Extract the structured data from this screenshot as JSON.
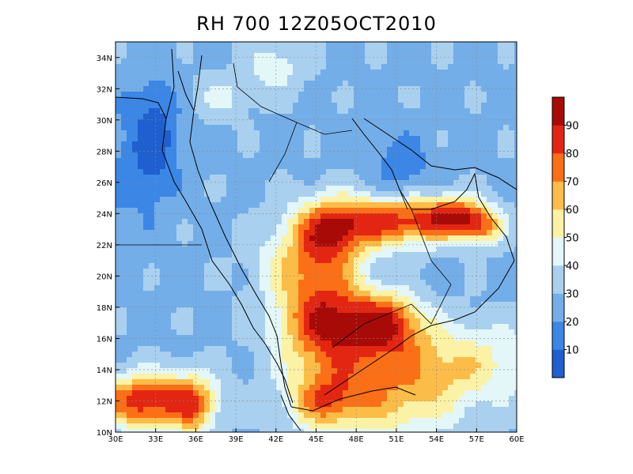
{
  "title": "RH 700 12Z05OCT2010",
  "map": {
    "lon_range": [
      30,
      60
    ],
    "lat_range": [
      10,
      35
    ],
    "x_ticks": [
      {
        "value": 30,
        "label": "30E"
      },
      {
        "value": 33,
        "label": "33E"
      },
      {
        "value": 36,
        "label": "36E"
      },
      {
        "value": 39,
        "label": "39E"
      },
      {
        "value": 42,
        "label": "42E"
      },
      {
        "value": 45,
        "label": "45E"
      },
      {
        "value": 48,
        "label": "48E"
      },
      {
        "value": 51,
        "label": "51E"
      },
      {
        "value": 54,
        "label": "54E"
      },
      {
        "value": 57,
        "label": "57E"
      },
      {
        "value": 60,
        "label": "60E"
      }
    ],
    "y_ticks": [
      {
        "value": 10,
        "label": "10N"
      },
      {
        "value": 12,
        "label": "12N"
      },
      {
        "value": 14,
        "label": "14N"
      },
      {
        "value": 16,
        "label": "16N"
      },
      {
        "value": 18,
        "label": "18N"
      },
      {
        "value": 20,
        "label": "20N"
      },
      {
        "value": 22,
        "label": "22N"
      },
      {
        "value": 24,
        "label": "24N"
      },
      {
        "value": 26,
        "label": "26N"
      },
      {
        "value": 28,
        "label": "28N"
      },
      {
        "value": 30,
        "label": "30N"
      },
      {
        "value": 32,
        "label": "32N"
      },
      {
        "value": 34,
        "label": "34N"
      }
    ],
    "grid": true
  },
  "colorbar": {
    "labels": [
      "10",
      "20",
      "30",
      "40",
      "50",
      "60",
      "70",
      "80",
      "90"
    ],
    "colors": [
      "#1f5fcf",
      "#3c86e6",
      "#74aee9",
      "#a9d0ef",
      "#e3f6f8",
      "#fbf2a5",
      "#fcbc48",
      "#fb6f16",
      "#e32612",
      "#a80b07"
    ]
  },
  "fields": {
    "background_rh": 28,
    "features": [
      {
        "lon": 33.0,
        "lat": 29.0,
        "sx": 1.2,
        "sy": 2.5,
        "amp": -22
      },
      {
        "lon": 31.0,
        "lat": 27.0,
        "sx": 2.0,
        "sy": 3.0,
        "amp": -10
      },
      {
        "lon": 51.5,
        "lat": 27.0,
        "sx": 1.5,
        "sy": 1.5,
        "amp": -15
      },
      {
        "lon": 38.0,
        "lat": 31.5,
        "sx": 1.6,
        "sy": 1.0,
        "amp": 14
      },
      {
        "lon": 42.0,
        "lat": 33.5,
        "sx": 1.5,
        "sy": 1.2,
        "amp": 18
      },
      {
        "lon": 46.0,
        "lat": 17.0,
        "sx": 2.6,
        "sy": 2.2,
        "amp": 62
      },
      {
        "lon": 50.5,
        "lat": 17.0,
        "sx": 1.8,
        "sy": 1.4,
        "amp": 45
      },
      {
        "lon": 44.5,
        "lat": 21.0,
        "sx": 2.5,
        "sy": 1.8,
        "amp": 30
      },
      {
        "lon": 46.0,
        "lat": 23.0,
        "sx": 1.8,
        "sy": 1.5,
        "amp": 38
      },
      {
        "lon": 51.0,
        "lat": 23.5,
        "sx": 3.5,
        "sy": 1.1,
        "amp": 55
      },
      {
        "lon": 55.5,
        "lat": 23.8,
        "sx": 1.6,
        "sy": 0.8,
        "amp": 45
      },
      {
        "lon": 57.5,
        "lat": 23.0,
        "sx": 1.0,
        "sy": 0.8,
        "amp": 30
      },
      {
        "lon": 32.5,
        "lat": 12.0,
        "sx": 2.8,
        "sy": 1.2,
        "amp": 62
      },
      {
        "lon": 36.0,
        "lat": 11.5,
        "sx": 1.0,
        "sy": 1.5,
        "amp": 28
      },
      {
        "lon": 50.0,
        "lat": 12.0,
        "sx": 4.0,
        "sy": 2.0,
        "amp": 30
      },
      {
        "lon": 55.0,
        "lat": 14.5,
        "sx": 5.0,
        "sy": 1.8,
        "amp": 28
      },
      {
        "lon": 45.5,
        "lat": 12.0,
        "sx": 1.8,
        "sy": 1.2,
        "amp": 32
      },
      {
        "lon": 49.0,
        "lat": 19.5,
        "sx": 3.0,
        "sy": 1.0,
        "amp": -6
      }
    ]
  }
}
